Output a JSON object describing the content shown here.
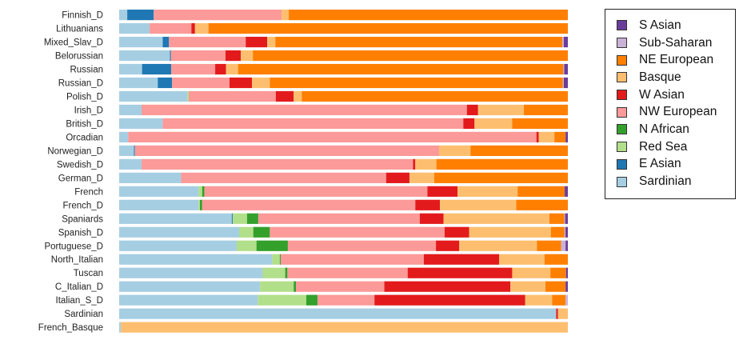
{
  "chart_data": {
    "type": "bar",
    "orientation": "horizontal",
    "stacked": true,
    "normalized": true,
    "title": "",
    "xlabel": "",
    "ylabel": "",
    "xlim": [
      0,
      1
    ],
    "legend_position": "top-right",
    "grid": false,
    "categories": [
      "Finnish_D",
      "Lithuanians",
      "Mixed_Slav_D",
      "Belorussian",
      "Russian",
      "Russian_D",
      "Polish_D",
      "Irish_D",
      "British_D",
      "Orcadian",
      "Norwegian_D",
      "Swedish_D",
      "German_D",
      "French",
      "French_D",
      "Spaniards",
      "Spanish_D",
      "Portuguese_D",
      "North_Italian",
      "Tuscan",
      "C_Italian_D",
      "Italian_S_D",
      "Sardinian",
      "French_Basque"
    ],
    "series": [
      {
        "name": "Sardinian",
        "color": "#a6cee3",
        "values": [
          0.018,
          0.068,
          0.097,
          0.113,
          0.051,
          0.086,
          0.152,
          0.05,
          0.097,
          0.02,
          0.033,
          0.05,
          0.138,
          0.177,
          0.177,
          0.251,
          0.254,
          0.262,
          0.341,
          0.32,
          0.314,
          0.309,
          0.974,
          0.004
        ]
      },
      {
        "name": "E Asian",
        "color": "#1f78b4",
        "values": [
          0.059,
          0.0,
          0.014,
          0.002,
          0.065,
          0.032,
          0.0,
          0.0,
          0.0,
          0.0,
          0.002,
          0.0,
          0.0,
          0.0,
          0.0,
          0.002,
          0.0,
          0.0,
          0.0,
          0.0,
          0.0,
          0.0,
          0.0,
          0.0
        ]
      },
      {
        "name": "Red Sea",
        "color": "#b2df8a",
        "values": [
          0.0,
          0.0,
          0.0,
          0.0,
          0.0,
          0.0,
          0.003,
          0.0,
          0.0,
          0.0,
          0.0,
          0.0,
          0.0,
          0.008,
          0.003,
          0.032,
          0.03,
          0.044,
          0.017,
          0.05,
          0.075,
          0.108,
          0.0,
          0.0
        ]
      },
      {
        "name": "N African",
        "color": "#33a02c",
        "values": [
          0.0,
          0.0,
          0.0,
          0.0,
          0.0,
          0.0,
          0.0,
          0.0,
          0.0,
          0.0,
          0.0,
          0.0,
          0.0,
          0.005,
          0.005,
          0.025,
          0.035,
          0.07,
          0.002,
          0.005,
          0.005,
          0.025,
          0.0,
          0.0
        ]
      },
      {
        "name": "NW European",
        "color": "#fb9a99",
        "values": [
          0.285,
          0.093,
          0.171,
          0.122,
          0.098,
          0.128,
          0.194,
          0.725,
          0.67,
          0.91,
          0.678,
          0.605,
          0.457,
          0.497,
          0.475,
          0.36,
          0.37,
          0.33,
          0.319,
          0.268,
          0.197,
          0.127,
          0.0,
          0.0
        ]
      },
      {
        "name": "W Asian",
        "color": "#e31a1c",
        "values": [
          0.0,
          0.008,
          0.048,
          0.034,
          0.024,
          0.05,
          0.04,
          0.025,
          0.025,
          0.005,
          0.0,
          0.005,
          0.052,
          0.067,
          0.055,
          0.053,
          0.052,
          0.052,
          0.168,
          0.233,
          0.281,
          0.336,
          0.004,
          0.0
        ]
      },
      {
        "name": "Basque",
        "color": "#fdbf6f",
        "values": [
          0.016,
          0.03,
          0.018,
          0.027,
          0.027,
          0.04,
          0.018,
          0.102,
          0.084,
          0.035,
          0.07,
          0.047,
          0.055,
          0.134,
          0.17,
          0.236,
          0.173,
          0.173,
          0.101,
          0.085,
          0.078,
          0.06,
          0.022,
          0.996
        ]
      },
      {
        "name": "NE European",
        "color": "#ff7f00",
        "values": [
          0.622,
          0.801,
          0.64,
          0.702,
          0.725,
          0.653,
          0.593,
          0.098,
          0.124,
          0.025,
          0.217,
          0.293,
          0.298,
          0.105,
          0.115,
          0.033,
          0.029,
          0.054,
          0.052,
          0.035,
          0.045,
          0.03,
          0.0,
          0.0
        ]
      },
      {
        "name": "Sub-Saharan",
        "color": "#cab2d6",
        "values": [
          0.0,
          0.0,
          0.003,
          0.0,
          0.002,
          0.002,
          0.0,
          0.0,
          0.0,
          0.0,
          0.0,
          0.0,
          0.0,
          0.0,
          0.0,
          0.002,
          0.002,
          0.01,
          0.0,
          0.0,
          0.0,
          0.005,
          0.0,
          0.0
        ]
      },
      {
        "name": "S Asian",
        "color": "#6a3d9a",
        "values": [
          0.0,
          0.0,
          0.009,
          0.0,
          0.008,
          0.009,
          0.0,
          0.0,
          0.0,
          0.005,
          0.0,
          0.0,
          0.0,
          0.007,
          0.0,
          0.006,
          0.005,
          0.005,
          0.0,
          0.004,
          0.005,
          0.0,
          0.0,
          0.0
        ]
      }
    ],
    "legend": [
      "S Asian",
      "Sub-Saharan",
      "NE European",
      "Basque",
      "W Asian",
      "NW European",
      "N African",
      "Red Sea",
      "E Asian",
      "Sardinian"
    ]
  }
}
